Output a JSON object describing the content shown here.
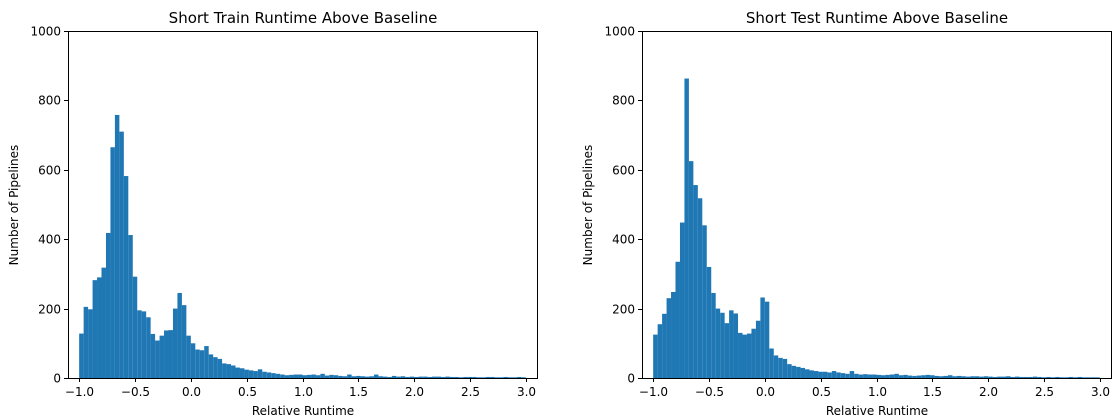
{
  "chart_data": [
    {
      "type": "bar",
      "title": "Short Train Runtime Above Baseline",
      "xlabel": "Relative Runtime",
      "ylabel": "Number of Pipelines",
      "xlim": [
        -1.1,
        3.1
      ],
      "ylim": [
        0,
        1000
      ],
      "xticks": [
        -1.0,
        -0.5,
        0.0,
        0.5,
        1.0,
        1.5,
        2.0,
        2.5,
        3.0
      ],
      "xtick_labels": [
        "−1.0",
        "−0.5",
        "0.0",
        "0.5",
        "1.0",
        "1.5",
        "2.0",
        "2.5",
        "3.0"
      ],
      "yticks": [
        0,
        200,
        400,
        600,
        800,
        1000
      ],
      "ytick_labels": [
        "0",
        "200",
        "400",
        "600",
        "800",
        "1000"
      ],
      "bin_start": -1.0,
      "bin_width": 0.04,
      "bar_color": "#1f77b4",
      "values": [
        128,
        205,
        198,
        282,
        290,
        318,
        418,
        665,
        758,
        710,
        582,
        412,
        292,
        195,
        192,
        175,
        127,
        108,
        122,
        137,
        138,
        200,
        245,
        210,
        122,
        100,
        82,
        80,
        92,
        68,
        60,
        55,
        42,
        40,
        36,
        30,
        28,
        24,
        22,
        20,
        25,
        18,
        16,
        14,
        12,
        10,
        8,
        9,
        10,
        10,
        8,
        9,
        10,
        8,
        12,
        7,
        9,
        8,
        6,
        5,
        10,
        5,
        6,
        5,
        4,
        5,
        10,
        5,
        4,
        3,
        6,
        4,
        5,
        3,
        4,
        3,
        4,
        4,
        3,
        4,
        4,
        3,
        4,
        3,
        3,
        2,
        3,
        3,
        3,
        2,
        2,
        3,
        3,
        2,
        2,
        3,
        2,
        2,
        3,
        2
      ]
    },
    {
      "type": "bar",
      "title": "Short Test Runtime Above Baseline",
      "xlabel": "Relative Runtime",
      "ylabel": "Number of Pipelines",
      "xlim": [
        -1.1,
        3.1
      ],
      "ylim": [
        0,
        1000
      ],
      "xticks": [
        -1.0,
        -0.5,
        0.0,
        0.5,
        1.0,
        1.5,
        2.0,
        2.5,
        3.0
      ],
      "xtick_labels": [
        "−1.0",
        "−0.5",
        "0.0",
        "0.5",
        "1.0",
        "1.5",
        "2.0",
        "2.5",
        "3.0"
      ],
      "yticks": [
        0,
        200,
        400,
        600,
        800,
        1000
      ],
      "ytick_labels": [
        "0",
        "200",
        "400",
        "600",
        "800",
        "1000"
      ],
      "bin_start": -1.0,
      "bin_width": 0.04,
      "bar_color": "#1f77b4",
      "values": [
        125,
        155,
        185,
        230,
        248,
        335,
        448,
        863,
        625,
        556,
        518,
        440,
        320,
        245,
        200,
        188,
        158,
        195,
        186,
        130,
        125,
        128,
        142,
        165,
        232,
        220,
        85,
        65,
        58,
        55,
        40,
        35,
        32,
        29,
        25,
        22,
        20,
        18,
        18,
        16,
        20,
        16,
        14,
        12,
        20,
        12,
        10,
        11,
        10,
        10,
        9,
        8,
        9,
        10,
        12,
        8,
        9,
        7,
        6,
        7,
        8,
        9,
        8,
        6,
        5,
        6,
        8,
        5,
        6,
        5,
        4,
        5,
        5,
        4,
        5,
        4,
        3,
        4,
        4,
        5,
        3,
        4,
        3,
        3,
        3,
        4,
        3,
        2,
        3,
        2,
        3,
        2,
        2,
        3,
        2,
        3,
        2,
        2,
        2,
        2
      ]
    }
  ]
}
